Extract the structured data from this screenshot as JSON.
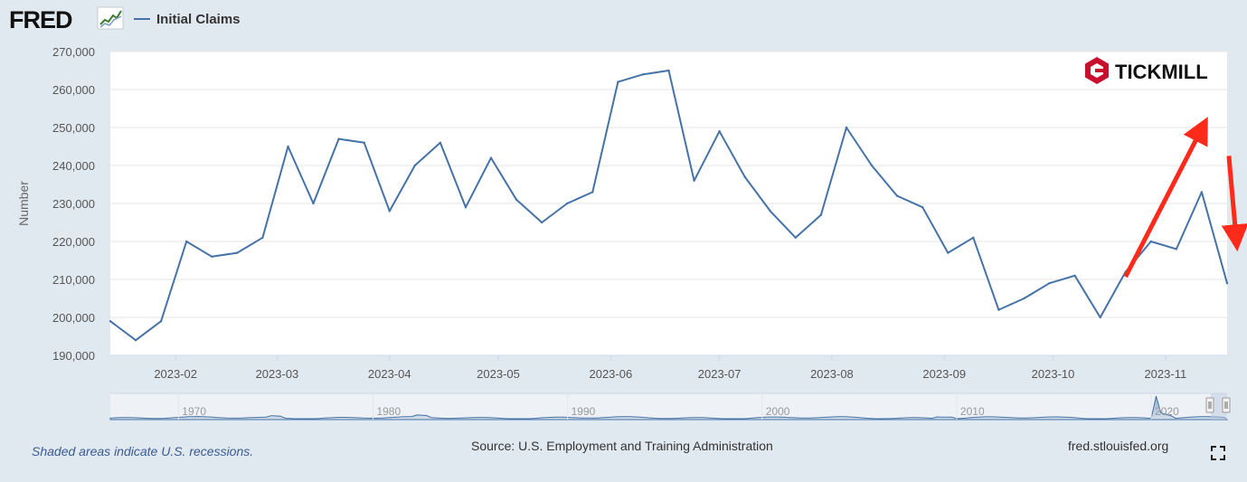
{
  "header": {
    "brand": "FRED",
    "legend_label": "Initial Claims",
    "watermark": "TICKMILL"
  },
  "footer": {
    "recession_note": "Shaded areas indicate U.S. recessions.",
    "source": "Source: U.S. Employment and Training Administration",
    "site": "fred.stlouisfed.org"
  },
  "icons": {
    "brand_logo": "fred-line-chart-icon",
    "fullscreen": "fullscreen-icon",
    "watermark_logo": "tickmill-hexagon-icon"
  },
  "colors": {
    "series": "#4572a7",
    "arrow": "#ff2a1a",
    "background": "#e1e9f0",
    "plot": "#ffffff",
    "grid": "#e6e6e6",
    "brand_red": "#c8102e"
  },
  "chart_data": {
    "type": "line",
    "title": "",
    "xlabel": "",
    "ylabel": "Number",
    "ylim": [
      190000,
      270000
    ],
    "y_ticks": [
      "190,000",
      "200,000",
      "210,000",
      "220,000",
      "230,000",
      "240,000",
      "250,000",
      "260,000",
      "270,000"
    ],
    "x_ticks": [
      "2023-02",
      "2023-03",
      "2023-04",
      "2023-05",
      "2023-06",
      "2023-07",
      "2023-08",
      "2023-09",
      "2023-10",
      "2023-11"
    ],
    "xlim": [
      "2023-01-14",
      "2023-11-18"
    ],
    "grid": true,
    "legend": "top-left",
    "series": [
      {
        "name": "Initial Claims",
        "x": [
          "2023-01-14",
          "2023-01-21",
          "2023-01-28",
          "2023-02-04",
          "2023-02-11",
          "2023-02-18",
          "2023-02-25",
          "2023-03-04",
          "2023-03-11",
          "2023-03-18",
          "2023-03-25",
          "2023-04-01",
          "2023-04-08",
          "2023-04-15",
          "2023-04-22",
          "2023-04-29",
          "2023-05-06",
          "2023-05-13",
          "2023-05-20",
          "2023-05-27",
          "2023-06-03",
          "2023-06-10",
          "2023-06-17",
          "2023-06-24",
          "2023-07-01",
          "2023-07-08",
          "2023-07-15",
          "2023-07-22",
          "2023-07-29",
          "2023-08-05",
          "2023-08-12",
          "2023-08-19",
          "2023-08-26",
          "2023-09-02",
          "2023-09-09",
          "2023-09-16",
          "2023-09-23",
          "2023-09-30",
          "2023-10-07",
          "2023-10-14",
          "2023-10-21",
          "2023-10-28",
          "2023-11-04",
          "2023-11-11",
          "2023-11-18"
        ],
        "values": [
          199000,
          194000,
          199000,
          220000,
          216000,
          217000,
          221000,
          245000,
          230000,
          247000,
          246000,
          228000,
          240000,
          246000,
          229000,
          242000,
          231000,
          225000,
          230000,
          233000,
          262000,
          264000,
          265000,
          236000,
          249000,
          237000,
          228000,
          221000,
          227000,
          250000,
          240000,
          232000,
          229000,
          217000,
          221000,
          202000,
          205000,
          209000,
          211000,
          200000,
          212000,
          220000,
          218000,
          233000,
          209000
        ]
      }
    ],
    "annotations": [
      {
        "type": "arrow",
        "direction": "up",
        "color": "#ff2a1a"
      },
      {
        "type": "arrow",
        "direction": "down",
        "color": "#ff2a1a"
      }
    ],
    "navigator": {
      "ticks": [
        "1970",
        "1980",
        "1990",
        "2000",
        "2010",
        "2020"
      ]
    }
  }
}
